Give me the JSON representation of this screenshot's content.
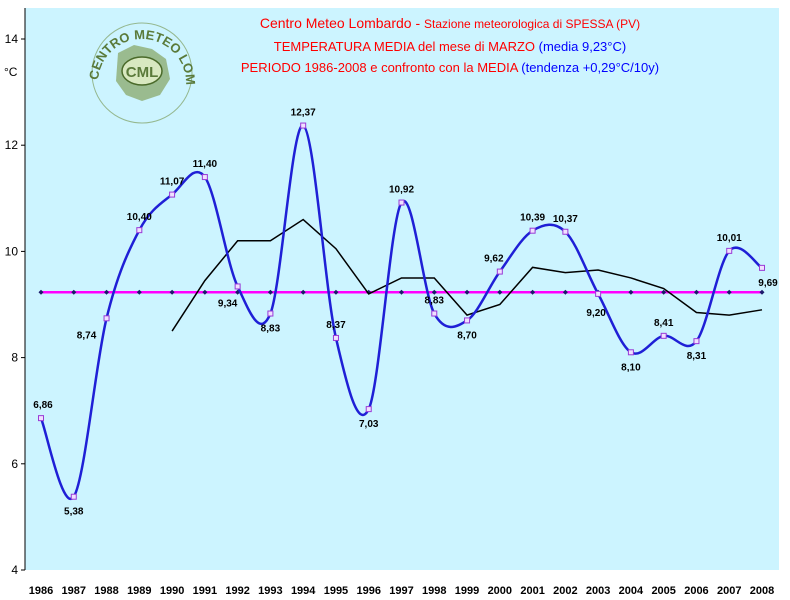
{
  "chart_data": {
    "type": "line",
    "title": {
      "line1": {
        "a": "Centro Meteo Lombardo - ",
        "b": "Stazione meteorologica di SPESSA (PV)"
      },
      "line2": {
        "a": "TEMPERATURA MEDIA del mese di MARZO ",
        "b": "(media 9,23°C)"
      },
      "line3": {
        "a": "PERIODO 1986-2008 e confronto con la MEDIA ",
        "b": "(tendenza +0,29°C/10y)"
      }
    },
    "ylabel": "°C",
    "ylim": [
      4,
      14
    ],
    "yticks": [
      "4",
      "6",
      "8",
      "10",
      "12",
      "14"
    ],
    "x": [
      "1986",
      "1987",
      "1988",
      "1989",
      "1990",
      "1991",
      "1992",
      "1993",
      "1994",
      "1995",
      "1996",
      "1997",
      "1998",
      "1999",
      "2000",
      "2001",
      "2002",
      "2003",
      "2004",
      "2005",
      "2006",
      "2007",
      "2008"
    ],
    "series": [
      {
        "values": [
          6.86,
          5.38,
          8.74,
          10.4,
          11.07,
          11.4,
          9.34,
          8.83,
          12.37,
          8.37,
          7.03,
          10.92,
          8.83,
          8.7,
          9.62,
          10.39,
          10.37,
          9.2,
          8.1,
          8.41,
          8.31,
          10.01,
          9.69
        ],
        "labels": [
          "6,86",
          "5,38",
          "8,74",
          "10,40",
          "11,07",
          "11,40",
          "9,34",
          "8,83",
          "12,37",
          "8,37",
          "7,03",
          "10,92",
          "8,83",
          "8,70",
          "9,62",
          "10,39",
          "10,37",
          "9,20",
          "8,10",
          "8,41",
          "8,31",
          "10,01",
          "9,69"
        ],
        "color": "#1f1fd6"
      },
      {
        "values": [
          null,
          null,
          null,
          null,
          8.5,
          9.45,
          10.2,
          10.2,
          10.6,
          10.05,
          9.2,
          9.5,
          9.5,
          8.8,
          9.0,
          9.7,
          9.6,
          9.65,
          9.5,
          9.3,
          8.85,
          8.8,
          8.9
        ],
        "color": "#000000"
      },
      {
        "values": [
          9.23,
          9.23,
          9.23,
          9.23,
          9.23,
          9.23,
          9.23,
          9.23,
          9.23,
          9.23,
          9.23,
          9.23,
          9.23,
          9.23,
          9.23,
          9.23,
          9.23,
          9.23,
          9.23,
          9.23,
          9.23,
          9.23,
          9.23
        ],
        "color": "#ff00ff"
      }
    ],
    "grid": false,
    "background_color": "#ccf4ff",
    "title_colors": {
      "red": "#ff0000",
      "blue": "#0000ff"
    }
  },
  "logo": {
    "top": "CENTRO METEO LOMBARDO",
    "badge": "CML"
  }
}
